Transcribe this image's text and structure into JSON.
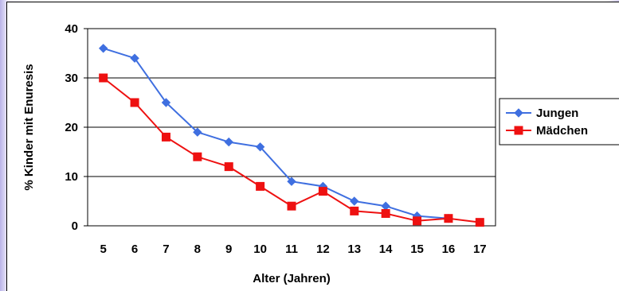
{
  "chart_data": {
    "type": "line",
    "title": "",
    "xlabel": "Alter (Jahren)",
    "ylabel": "% Kinder mit Enuresis",
    "x": [
      5,
      6,
      7,
      8,
      9,
      10,
      11,
      12,
      13,
      14,
      15,
      16,
      17
    ],
    "ylim": [
      0,
      40
    ],
    "yticks": [
      0,
      10,
      20,
      30,
      40
    ],
    "grid": true,
    "legend_position": "right",
    "series": [
      {
        "name": "Jungen",
        "color": "#3f6fe0",
        "marker": "diamond",
        "values": [
          36,
          34,
          25,
          19,
          17,
          16,
          9,
          8,
          5,
          4,
          2,
          1.5,
          null
        ]
      },
      {
        "name": "Mädchen",
        "color": "#ee1111",
        "marker": "square",
        "values": [
          30,
          25,
          18,
          14,
          12,
          8,
          4,
          7,
          3,
          2.5,
          1,
          1.5,
          0.7
        ]
      }
    ]
  }
}
